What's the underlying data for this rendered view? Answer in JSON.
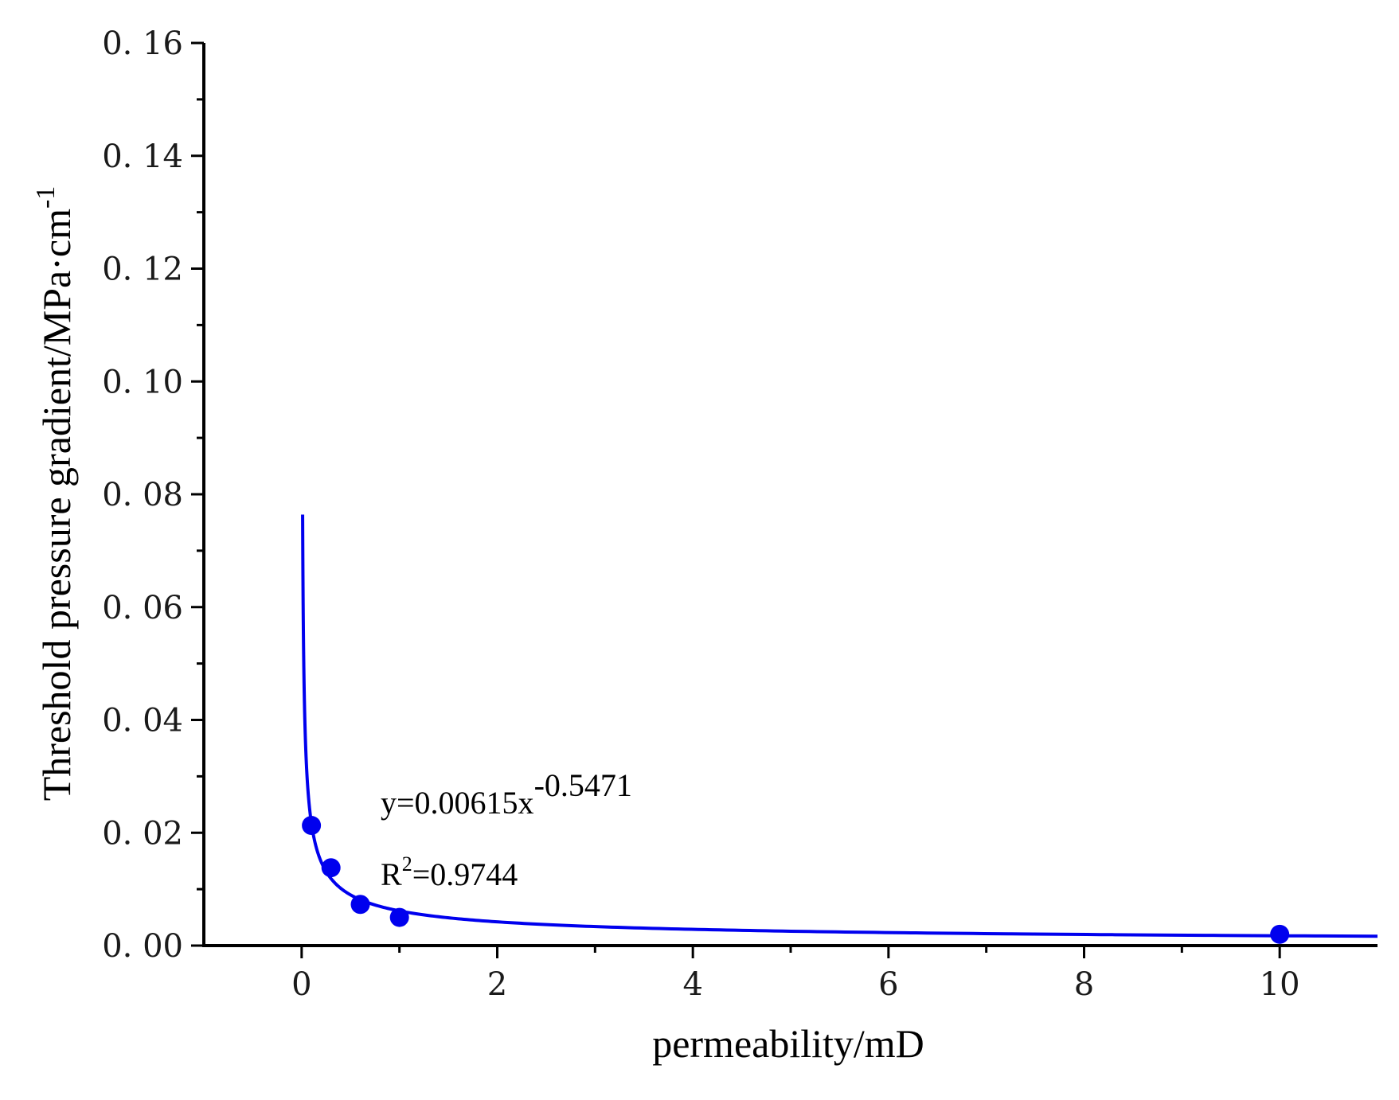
{
  "chart_data": {
    "type": "scatter",
    "x_label": "permeability/mD",
    "y_label": "Threshold pressure gradient/MPa·cm",
    "y_label_superscript": "-1",
    "xlim": [
      -1,
      11
    ],
    "ylim": [
      0,
      0.16
    ],
    "x_ticks": [
      {
        "value": 0,
        "label": "0"
      },
      {
        "value": 2,
        "label": "2"
      },
      {
        "value": 4,
        "label": "4"
      },
      {
        "value": 6,
        "label": "6"
      },
      {
        "value": 8,
        "label": "8"
      },
      {
        "value": 10,
        "label": "10"
      }
    ],
    "x_minor_ticks": [
      1,
      3,
      5,
      7,
      9
    ],
    "y_ticks": [
      {
        "value": 0,
        "label": "0. 00"
      },
      {
        "value": 0.02,
        "label": "0. 02"
      },
      {
        "value": 0.04,
        "label": "0. 04"
      },
      {
        "value": 0.06,
        "label": "0. 06"
      },
      {
        "value": 0.08,
        "label": "0. 08"
      },
      {
        "value": 0.1,
        "label": "0. 10"
      },
      {
        "value": 0.12,
        "label": "0. 12"
      },
      {
        "value": 0.14,
        "label": "0. 14"
      },
      {
        "value": 0.16,
        "label": "0. 16"
      }
    ],
    "y_minor_ticks": [
      0.01,
      0.03,
      0.05,
      0.07,
      0.09,
      0.11,
      0.13,
      0.15
    ],
    "grid": false,
    "series": [
      {
        "kind": "scatter",
        "color": "#0000ee",
        "points": [
          {
            "x": 0.1,
            "y": 0.0213
          },
          {
            "x": 0.3,
            "y": 0.0138
          },
          {
            "x": 0.6,
            "y": 0.0073
          },
          {
            "x": 1.0,
            "y": 0.005
          },
          {
            "x": 10.0,
            "y": 0.002
          }
        ]
      },
      {
        "kind": "fit",
        "color": "#0000ee",
        "model": "power",
        "coefficient": 0.00615,
        "exponent": -0.5471,
        "x_range": [
          0.01,
          11
        ]
      }
    ],
    "annotations": {
      "equation_prefix": "y=0.00615x",
      "equation_exponent": "-0.5471",
      "r2_prefix": "R",
      "r2_exponent": "2",
      "r2_value": "=0.9744"
    }
  }
}
